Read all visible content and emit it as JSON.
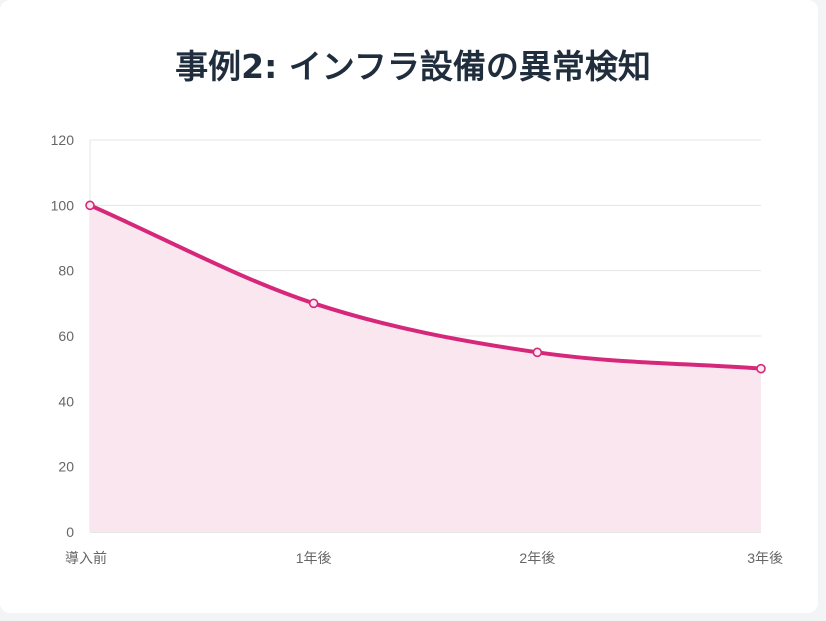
{
  "chart_data": {
    "type": "line",
    "title": "事例2: インフラ設備の異常検知",
    "categories": [
      "導入前",
      "1年後",
      "2年後",
      "3年後"
    ],
    "series": [
      {
        "values": [
          100,
          70,
          55,
          50
        ],
        "color": "#d6287a",
        "fill": "#f9e6ef"
      }
    ],
    "yticks": [
      "0",
      "20",
      "40",
      "60",
      "80",
      "100",
      "120"
    ],
    "ylim": [
      0,
      120
    ],
    "grid": true,
    "legend": "none"
  }
}
